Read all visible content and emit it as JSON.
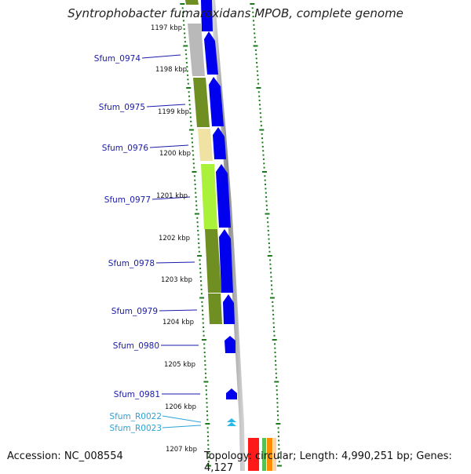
{
  "title": "Syntrophobacter fumaroxidans MPOB, complete genome",
  "accession": "Accession: NC_008554",
  "topology_text": "Topology: circular; Length: 4,990,251 bp; Genes: 4,127",
  "colors": {
    "ruler": "#1a7a1a",
    "gene_forward": "#0000ee",
    "gene_rna": "#27b8e8",
    "label_gene": "#1a1aaa",
    "label_rna": "#2aa3d8",
    "backbone": "#9a9a9a"
  },
  "ruler_labels": [
    "1197 kbp",
    "1198 kbp",
    "1199 kbp",
    "1200 kbp",
    "1201 kbp",
    "1202 kbp",
    "1203 kbp",
    "1204 kbp",
    "1205 kbp",
    "1206 kbp",
    "1207 kbp"
  ],
  "genes": [
    {
      "name": "Sfum_0974",
      "type": "gene",
      "color": "#b9b9b9"
    },
    {
      "name": "Sfum_0975",
      "type": "gene",
      "color": "#6f8f22"
    },
    {
      "name": "Sfum_0976",
      "type": "gene",
      "color": "#efe2a2"
    },
    {
      "name": "Sfum_0977",
      "type": "gene",
      "color": "#aaf23a"
    },
    {
      "name": "Sfum_0978",
      "type": "gene",
      "color": "#6f8f22"
    },
    {
      "name": "Sfum_0979",
      "type": "gene",
      "color": "#6f8f22"
    },
    {
      "name": "Sfum_0980",
      "type": "gene",
      "color": ""
    },
    {
      "name": "Sfum_0981",
      "type": "gene",
      "color": ""
    },
    {
      "name": "Sfum_R0022",
      "type": "rna",
      "color": ""
    },
    {
      "name": "Sfum_R0023",
      "type": "rna",
      "color": ""
    }
  ]
}
